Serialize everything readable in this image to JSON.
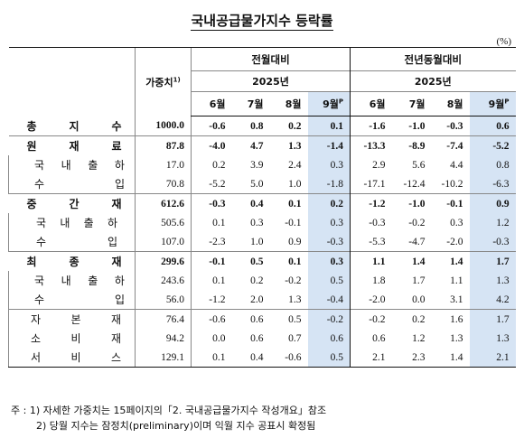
{
  "title": "국내공급물가지수 등락률",
  "unit": "(%)",
  "header": {
    "weight_label": "가중치",
    "weight_sup": "1)",
    "group_mom": "전월대비",
    "group_yoy": "전년동월대비",
    "year_mom": "2025년",
    "year_yoy": "2025년",
    "months_mom": [
      "6월",
      "7월",
      "8월",
      "9월"
    ],
    "months_yoy": [
      "6월",
      "7월",
      "8월",
      "9월"
    ],
    "prelim_sup": "P"
  },
  "rows": [
    {
      "label": "총지수",
      "chars": [
        "총",
        "지",
        "수"
      ],
      "weight": "1000.0",
      "mom": [
        "-0.6",
        "0.8",
        "0.2",
        "0.1"
      ],
      "yoy": [
        "-1.6",
        "-1.0",
        "-0.3",
        "0.6"
      ]
    },
    {
      "label": "원재료",
      "chars": [
        "원",
        "재",
        "료"
      ],
      "weight": "87.8",
      "mom": [
        "-4.0",
        "4.7",
        "1.3",
        "-1.4"
      ],
      "yoy": [
        "-13.3",
        "-8.9",
        "-7.4",
        "-5.2"
      ]
    },
    {
      "label": "국내출하",
      "chars": [
        "국",
        "내",
        "출",
        "하"
      ],
      "weight": "17.0",
      "mom": [
        "0.2",
        "3.9",
        "2.4",
        "0.3"
      ],
      "yoy": [
        "2.9",
        "5.6",
        "4.4",
        "0.8"
      ]
    },
    {
      "label": "수입",
      "chars": [
        "수",
        "입"
      ],
      "weight": "70.8",
      "mom": [
        "-5.2",
        "5.0",
        "1.0",
        "-1.8"
      ],
      "yoy": [
        "-17.1",
        "-12.4",
        "-10.2",
        "-6.3"
      ]
    },
    {
      "label": "중간재",
      "chars": [
        "중",
        "간",
        "재"
      ],
      "weight": "612.6",
      "mom": [
        "-0.3",
        "0.4",
        "0.1",
        "0.2"
      ],
      "yoy": [
        "-1.2",
        "-1.0",
        "-0.1",
        "0.9"
      ]
    },
    {
      "label": "국내출하",
      "chars": [
        "국",
        "내",
        "출",
        "하"
      ],
      "weight": "505.6",
      "mom": [
        "0.1",
        "0.3",
        "-0.1",
        "0.3"
      ],
      "yoy": [
        "-0.3",
        "-0.2",
        "0.3",
        "1.2"
      ]
    },
    {
      "label": "수입",
      "chars": [
        "수",
        "입"
      ],
      "weight": "107.0",
      "mom": [
        "-2.3",
        "1.0",
        "0.9",
        "-0.3"
      ],
      "yoy": [
        "-5.3",
        "-4.7",
        "-2.0",
        "-0.3"
      ]
    },
    {
      "label": "최종재",
      "chars": [
        "최",
        "종",
        "재"
      ],
      "weight": "299.6",
      "mom": [
        "-0.1",
        "0.5",
        "0.1",
        "0.3"
      ],
      "yoy": [
        "1.1",
        "1.4",
        "1.4",
        "1.7"
      ]
    },
    {
      "label": "국내출하",
      "chars": [
        "국",
        "내",
        "출",
        "하"
      ],
      "weight": "243.6",
      "mom": [
        "0.1",
        "0.2",
        "-0.2",
        "0.5"
      ],
      "yoy": [
        "1.8",
        "1.7",
        "1.1",
        "1.3"
      ]
    },
    {
      "label": "수입",
      "chars": [
        "수",
        "입"
      ],
      "weight": "56.0",
      "mom": [
        "-1.2",
        "2.0",
        "1.3",
        "-0.4"
      ],
      "yoy": [
        "-2.0",
        "0.0",
        "3.1",
        "4.2"
      ]
    },
    {
      "label": "자본재",
      "chars": [
        "자",
        "본",
        "재"
      ],
      "weight": "76.4",
      "mom": [
        "-0.6",
        "0.6",
        "0.5",
        "-0.2"
      ],
      "yoy": [
        "-0.2",
        "0.2",
        "1.6",
        "1.7"
      ]
    },
    {
      "label": "소비재",
      "chars": [
        "소",
        "비",
        "재"
      ],
      "weight": "94.2",
      "mom": [
        "0.0",
        "0.6",
        "0.7",
        "0.6"
      ],
      "yoy": [
        "0.6",
        "1.2",
        "1.3",
        "1.3"
      ]
    },
    {
      "label": "서비스",
      "chars": [
        "서",
        "비",
        "스"
      ],
      "weight": "129.1",
      "mom": [
        "0.1",
        "0.4",
        "-0.6",
        "0.5"
      ],
      "yoy": [
        "2.1",
        "2.3",
        "1.4",
        "2.1"
      ]
    }
  ],
  "footnotes": {
    "fn1": "주 : 1) 자세한 가중치는 15페이지의「2. 국내공급물가지수 작성개요」참조",
    "fn2": "2) 당월 지수는 잠정치(preliminary)이며 익월 지수 공표시 확정됨"
  },
  "colors": {
    "highlight": "#d6e4f4",
    "text": "#111111"
  }
}
